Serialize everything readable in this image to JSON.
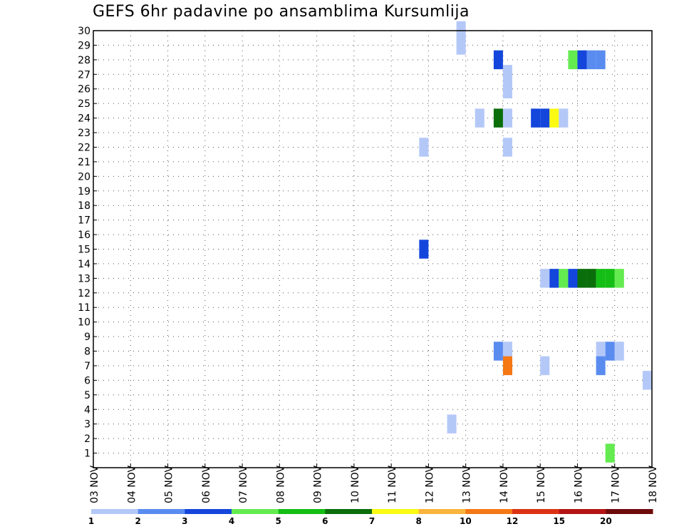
{
  "chart_data": {
    "type": "heatmap",
    "title": "GEFS 6hr padavine po ansamblima Kursumlija",
    "xlabel": "",
    "ylabel": "",
    "x_ticks": [
      "03 NOV",
      "04 NOV",
      "05 NOV",
      "06 NOV",
      "07 NOV",
      "08 NOV",
      "09 NOV",
      "10 NOV",
      "11 NOV",
      "12 NOV",
      "13 NOV",
      "14 NOV",
      "15 NOV",
      "16 NOV",
      "17 NOV",
      "18 NOV"
    ],
    "x_unit": "6-hour steps starting 03 NOV 00Z",
    "y_ticks": [
      1,
      2,
      3,
      4,
      5,
      6,
      7,
      8,
      9,
      10,
      11,
      12,
      13,
      14,
      15,
      16,
      17,
      18,
      19,
      20,
      21,
      22,
      23,
      24,
      25,
      26,
      27,
      28,
      29,
      30
    ],
    "ylim": [
      0,
      30
    ],
    "grid": true,
    "legend": {
      "placement": "bottom",
      "labels": [
        "1",
        "2",
        "3",
        "4",
        "5",
        "6",
        "7",
        "8",
        "10",
        "12",
        "15",
        "20"
      ],
      "colors": [
        "#b4c8f8",
        "#5a8cf0",
        "#1446dc",
        "#64eb50",
        "#14be14",
        "#0a6e0a",
        "#fafa14",
        "#fab43c",
        "#f57814",
        "#dc3214",
        "#b41414",
        "#6e0a0a"
      ]
    },
    "cells": [
      {
        "member": 30,
        "x": "12 NOV 18Z",
        "category": 1
      },
      {
        "member": 29,
        "x": "12 NOV 18Z",
        "category": 1
      },
      {
        "member": 28,
        "x": "13 NOV 18Z",
        "category": 3
      },
      {
        "member": 28,
        "x": "15 NOV 18Z",
        "category": 4
      },
      {
        "member": 28,
        "x": "16 NOV 00Z",
        "category": 3
      },
      {
        "member": 28,
        "x": "16 NOV 06Z",
        "category": 2
      },
      {
        "member": 28,
        "x": "16 NOV 12Z",
        "category": 2
      },
      {
        "member": 27,
        "x": "14 NOV 00Z",
        "category": 1
      },
      {
        "member": 26,
        "x": "14 NOV 00Z",
        "category": 1
      },
      {
        "member": 24,
        "x": "13 NOV 06Z",
        "category": 1
      },
      {
        "member": 24,
        "x": "13 NOV 18Z",
        "category": 6
      },
      {
        "member": 24,
        "x": "14 NOV 00Z",
        "category": 1
      },
      {
        "member": 24,
        "x": "14 NOV 18Z",
        "category": 3
      },
      {
        "member": 24,
        "x": "15 NOV 00Z",
        "category": 3
      },
      {
        "member": 24,
        "x": "15 NOV 06Z",
        "category": 7
      },
      {
        "member": 24,
        "x": "15 NOV 12Z",
        "category": 1
      },
      {
        "member": 22,
        "x": "11 NOV 18Z",
        "category": 1
      },
      {
        "member": 22,
        "x": "14 NOV 00Z",
        "category": 1
      },
      {
        "member": 15,
        "x": "11 NOV 18Z",
        "category": 3
      },
      {
        "member": 13,
        "x": "15 NOV 00Z",
        "category": 1
      },
      {
        "member": 13,
        "x": "15 NOV 06Z",
        "category": 3
      },
      {
        "member": 13,
        "x": "15 NOV 12Z",
        "category": 4
      },
      {
        "member": 13,
        "x": "15 NOV 18Z",
        "category": 3
      },
      {
        "member": 13,
        "x": "16 NOV 00Z",
        "category": 6
      },
      {
        "member": 13,
        "x": "16 NOV 06Z",
        "category": 6
      },
      {
        "member": 13,
        "x": "16 NOV 12Z",
        "category": 5
      },
      {
        "member": 13,
        "x": "16 NOV 18Z",
        "category": 5
      },
      {
        "member": 13,
        "x": "17 NOV 00Z",
        "category": 4
      },
      {
        "member": 8,
        "x": "13 NOV 18Z",
        "category": 2
      },
      {
        "member": 8,
        "x": "14 NOV 00Z",
        "category": 1
      },
      {
        "member": 8,
        "x": "16 NOV 12Z",
        "category": 1
      },
      {
        "member": 8,
        "x": "16 NOV 18Z",
        "category": 2
      },
      {
        "member": 8,
        "x": "17 NOV 00Z",
        "category": 1
      },
      {
        "member": 7,
        "x": "14 NOV 00Z",
        "category": 9
      },
      {
        "member": 7,
        "x": "15 NOV 00Z",
        "category": 1
      },
      {
        "member": 7,
        "x": "16 NOV 12Z",
        "category": 2
      },
      {
        "member": 6,
        "x": "17 NOV 18Z",
        "category": 1
      },
      {
        "member": 3,
        "x": "12 NOV 12Z",
        "category": 1
      },
      {
        "member": 1,
        "x": "16 NOV 18Z",
        "category": 4
      }
    ]
  }
}
